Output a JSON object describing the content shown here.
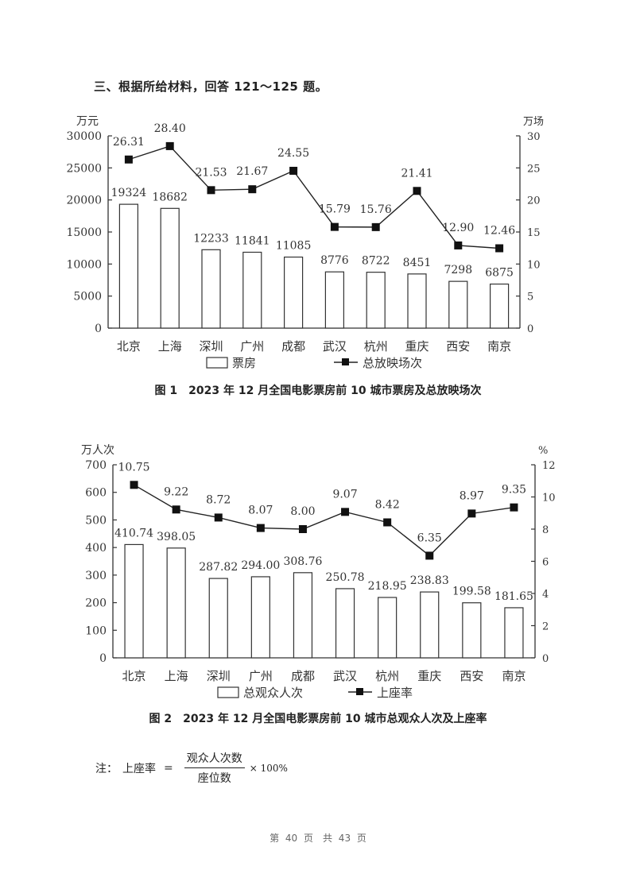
{
  "heading": "三、根据所给材料，回答 121～125 题。",
  "chart_data": [
    {
      "type": "bar",
      "title": "图 1　2023 年 12 月全国电影票房前 10 城市票房及总放映场次",
      "categories": [
        "北京",
        "上海",
        "深圳",
        "广州",
        "成都",
        "武汉",
        "杭州",
        "重庆",
        "西安",
        "南京"
      ],
      "series": [
        {
          "name": "票房",
          "type": "bar",
          "axis": "left",
          "values": [
            19324,
            18682,
            12233,
            11841,
            11085,
            8776,
            8722,
            8451,
            7298,
            6875
          ]
        },
        {
          "name": "总放映场次",
          "type": "line",
          "axis": "right",
          "values": [
            26.31,
            28.4,
            21.53,
            21.67,
            24.55,
            15.79,
            15.76,
            21.41,
            12.9,
            12.46
          ]
        }
      ],
      "ylabel": "万元",
      "ylim": [
        0,
        30000
      ],
      "yticks": [
        0,
        5000,
        10000,
        15000,
        20000,
        25000,
        30000
      ],
      "y2label": "万场",
      "y2lim": [
        0,
        30
      ],
      "y2ticks": [
        0,
        5,
        10,
        15,
        20,
        25,
        30
      ],
      "legend": [
        "票房",
        "总放映场次"
      ],
      "legend_position": "bottom",
      "grid": false
    },
    {
      "type": "bar",
      "title": "图 2　2023 年 12 月全国电影票房前 10 城市总观众人次及上座率",
      "categories": [
        "北京",
        "上海",
        "深圳",
        "广州",
        "成都",
        "武汉",
        "杭州",
        "重庆",
        "西安",
        "南京"
      ],
      "series": [
        {
          "name": "总观众人次",
          "type": "bar",
          "axis": "left",
          "values": [
            410.74,
            398.05,
            287.82,
            294.0,
            308.76,
            250.78,
            218.95,
            238.83,
            199.58,
            181.65
          ]
        },
        {
          "name": "上座率",
          "type": "line",
          "axis": "right",
          "values": [
            10.75,
            9.22,
            8.72,
            8.07,
            8.0,
            9.07,
            8.42,
            6.35,
            8.97,
            9.35
          ]
        }
      ],
      "ylabel": "万人次",
      "ylim": [
        0,
        700
      ],
      "yticks": [
        0,
        100,
        200,
        300,
        400,
        500,
        600,
        700
      ],
      "y2label": "%",
      "y2lim": [
        0,
        12
      ],
      "y2ticks": [
        0,
        2,
        4,
        6,
        8,
        10,
        12
      ],
      "legend": [
        "总观众人次",
        "上座率"
      ],
      "legend_position": "bottom",
      "grid": false
    }
  ],
  "charts": [
    {
      "bar_labels": [
        "19324",
        "18682",
        "12233",
        "11841",
        "11085",
        "8776",
        "8722",
        "8451",
        "7298",
        "6875"
      ],
      "line_labels": [
        "26.31",
        "28.40",
        "21.53",
        "21.67",
        "24.55",
        "15.79",
        "15.76",
        "21.41",
        "12.90",
        "12.46"
      ]
    },
    {
      "bar_labels": [
        "410.74",
        "398.05",
        "287.82",
        "294.00",
        "308.76",
        "250.78",
        "218.95",
        "238.83",
        "199.58",
        "181.65"
      ],
      "line_labels": [
        "10.75",
        "9.22",
        "8.72",
        "8.07",
        "8.00",
        "9.07",
        "8.42",
        "6.35",
        "8.97",
        "9.35"
      ]
    }
  ],
  "note": {
    "prefix": "注：",
    "term": "上座率",
    "equals": "=",
    "numerator": "观众人次数",
    "denominator": "座位数",
    "multiplier": "× 100%"
  },
  "footer": "第 40 页　共 43 页"
}
